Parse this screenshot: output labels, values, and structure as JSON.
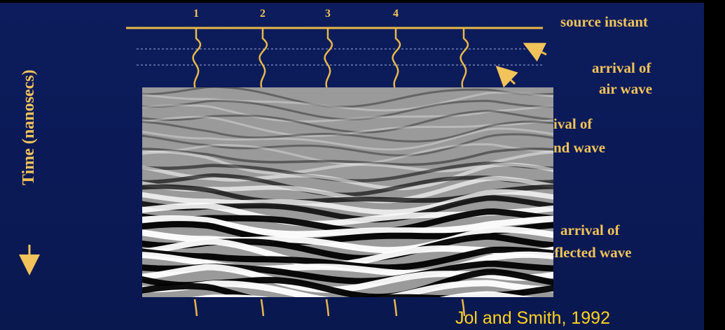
{
  "diagram": {
    "trace_numbers": [
      "1",
      "2",
      "3",
      "4"
    ],
    "labels": {
      "source": "source instant",
      "air_1": "arrival of",
      "air_2": "air wave",
      "ground_1": "ival of",
      "ground_2": "nd wave",
      "reflected_1": "arrival of",
      "reflected_2": "eflected wave"
    },
    "axis_label": "Time (nanosecs)",
    "citation": "Jol and Smith, 1992"
  }
}
